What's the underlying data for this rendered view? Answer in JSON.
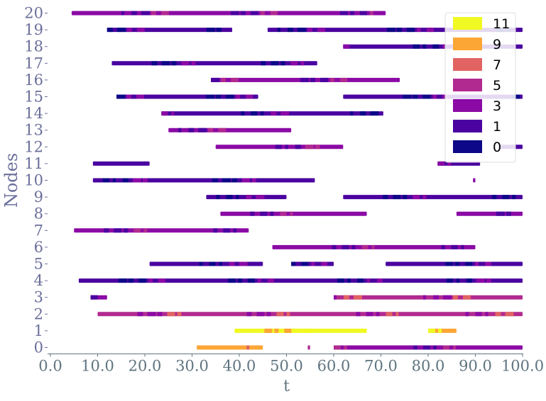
{
  "chart_data": {
    "type": "timeline",
    "title": "",
    "xlabel": "t",
    "ylabel": "Nodes",
    "xlim": [
      0,
      100
    ],
    "ylim": [
      0,
      20
    ],
    "x_ticks": [
      "0.0",
      "10.0",
      "20.0",
      "30.0",
      "40.0",
      "50.0",
      "60.0",
      "70.0",
      "80.0",
      "90.0",
      "100.0"
    ],
    "y_ticks": [
      "0",
      "1",
      "2",
      "3",
      "4",
      "5",
      "6",
      "7",
      "8",
      "9",
      "10",
      "11",
      "12",
      "13",
      "14",
      "15",
      "16",
      "17",
      "18",
      "19",
      "20"
    ],
    "legend": {
      "placement": "top-right",
      "entries": [
        {
          "label": "11",
          "color": "#f0f921"
        },
        {
          "label": "9",
          "color": "#fca636"
        },
        {
          "label": "7",
          "color": "#e16462"
        },
        {
          "label": "5",
          "color": "#b12a90"
        },
        {
          "label": "3",
          "color": "#8b0aa5"
        },
        {
          "label": "1",
          "color": "#4a02a0"
        },
        {
          "label": "0",
          "color": "#0d0887"
        }
      ]
    },
    "nodes": [
      {
        "node": 0,
        "intervals": [
          {
            "start": 31,
            "end": 45,
            "dominant": 9
          },
          {
            "start": 54.5,
            "end": 55,
            "dominant": 5
          },
          {
            "start": 60,
            "end": 100,
            "dominant": 3
          }
        ]
      },
      {
        "node": 1,
        "intervals": [
          {
            "start": 39,
            "end": 67,
            "dominant": 11
          },
          {
            "start": 80,
            "end": 86,
            "dominant": 9
          }
        ]
      },
      {
        "node": 2,
        "intervals": [
          {
            "start": 10,
            "end": 100,
            "dominant": 5
          }
        ]
      },
      {
        "node": 3,
        "intervals": [
          {
            "start": 8.5,
            "end": 12,
            "dominant": 3
          },
          {
            "start": 60,
            "end": 100,
            "dominant": 5
          }
        ]
      },
      {
        "node": 4,
        "intervals": [
          {
            "start": 6,
            "end": 100,
            "dominant": 1
          }
        ]
      },
      {
        "node": 5,
        "intervals": [
          {
            "start": 21,
            "end": 45,
            "dominant": 1
          },
          {
            "start": 51,
            "end": 60,
            "dominant": 1
          },
          {
            "start": 71,
            "end": 100,
            "dominant": 1
          }
        ]
      },
      {
        "node": 6,
        "intervals": [
          {
            "start": 47,
            "end": 90,
            "dominant": 3
          }
        ]
      },
      {
        "node": 7,
        "intervals": [
          {
            "start": 5,
            "end": 42,
            "dominant": 3
          }
        ]
      },
      {
        "node": 8,
        "intervals": [
          {
            "start": 36,
            "end": 67,
            "dominant": 3
          },
          {
            "start": 86,
            "end": 100,
            "dominant": 3
          }
        ]
      },
      {
        "node": 9,
        "intervals": [
          {
            "start": 33,
            "end": 50,
            "dominant": 1
          },
          {
            "start": 62,
            "end": 100,
            "dominant": 1
          }
        ]
      },
      {
        "node": 10,
        "intervals": [
          {
            "start": 9,
            "end": 56,
            "dominant": 1
          },
          {
            "start": 89.5,
            "end": 90,
            "dominant": 3
          }
        ]
      },
      {
        "node": 11,
        "intervals": [
          {
            "start": 9,
            "end": 21,
            "dominant": 1
          },
          {
            "start": 82,
            "end": 91,
            "dominant": 1
          }
        ]
      },
      {
        "node": 12,
        "intervals": [
          {
            "start": 35,
            "end": 62,
            "dominant": 3
          },
          {
            "start": 95,
            "end": 100,
            "dominant": 1
          }
        ]
      },
      {
        "node": 13,
        "intervals": [
          {
            "start": 25,
            "end": 51,
            "dominant": 3
          }
        ]
      },
      {
        "node": 14,
        "intervals": [
          {
            "start": 23.5,
            "end": 70.5,
            "dominant": 1
          }
        ]
      },
      {
        "node": 15,
        "intervals": [
          {
            "start": 14,
            "end": 44,
            "dominant": 1
          },
          {
            "start": 62,
            "end": 100,
            "dominant": 1
          }
        ]
      },
      {
        "node": 16,
        "intervals": [
          {
            "start": 34,
            "end": 74,
            "dominant": 3
          }
        ]
      },
      {
        "node": 17,
        "intervals": [
          {
            "start": 13,
            "end": 56.5,
            "dominant": 1
          }
        ]
      },
      {
        "node": 18,
        "intervals": [
          {
            "start": 62,
            "end": 100,
            "dominant": 1
          }
        ]
      },
      {
        "node": 19,
        "intervals": [
          {
            "start": 12,
            "end": 38.5,
            "dominant": 1
          },
          {
            "start": 46,
            "end": 100,
            "dominant": 1
          }
        ]
      },
      {
        "node": 20,
        "intervals": [
          {
            "start": 4.5,
            "end": 71,
            "dominant": 3
          }
        ]
      }
    ]
  }
}
